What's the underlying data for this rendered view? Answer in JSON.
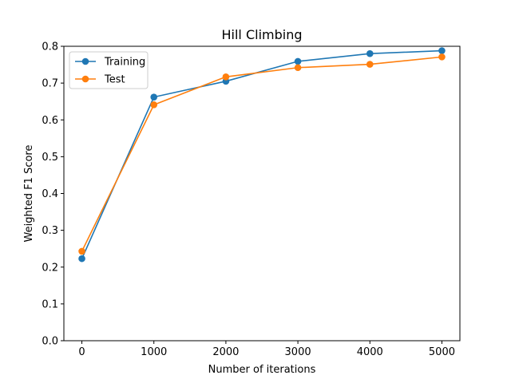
{
  "chart_data": {
    "type": "line",
    "title": "Hill Climbing",
    "xlabel": "Number of iterations",
    "ylabel": "Weighted F1 Score",
    "x": [
      0,
      1000,
      2000,
      3000,
      4000,
      5000
    ],
    "xlim": [
      -250,
      5250
    ],
    "ylim": [
      0.0,
      0.8
    ],
    "xticks": [
      0,
      1000,
      2000,
      3000,
      4000,
      5000
    ],
    "yticks": [
      0.0,
      0.1,
      0.2,
      0.3,
      0.4,
      0.5,
      0.6,
      0.7,
      0.8
    ],
    "xtick_labels": [
      "0",
      "1000",
      "2000",
      "3000",
      "4000",
      "5000"
    ],
    "ytick_labels": [
      "0.0",
      "0.1",
      "0.2",
      "0.3",
      "0.4",
      "0.5",
      "0.6",
      "0.7",
      "0.8"
    ],
    "grid": false,
    "legend_position": "top-left",
    "series": [
      {
        "name": "Training",
        "color": "#1f77b4",
        "values": [
          0.223,
          0.662,
          0.705,
          0.759,
          0.78,
          0.788
        ]
      },
      {
        "name": "Test",
        "color": "#ff7f0e",
        "values": [
          0.243,
          0.641,
          0.717,
          0.742,
          0.751,
          0.771
        ]
      }
    ]
  }
}
